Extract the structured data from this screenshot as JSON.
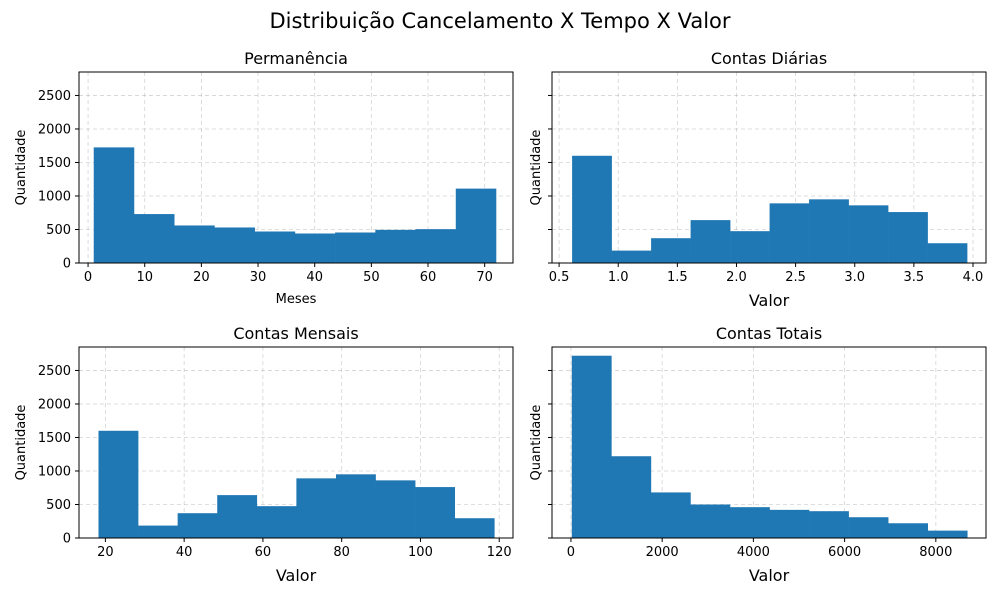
{
  "suptitle": "Distribuição Cancelamento X Tempo X Valor",
  "chart_data": [
    {
      "type": "bar",
      "title": "Permanência",
      "xlabel": "Meses",
      "ylabel": "Quantidade",
      "xlim": [
        -1.6,
        75
      ],
      "ylim": [
        0,
        2850
      ],
      "xticks": [
        0,
        10,
        20,
        30,
        40,
        50,
        60,
        70
      ],
      "xtick_labels": [
        "0",
        "10",
        "20",
        "30",
        "40",
        "50",
        "60",
        "70"
      ],
      "yticks": [
        0,
        500,
        1000,
        1500,
        2000,
        2500
      ],
      "ytick_labels": [
        "0",
        "500",
        "1000",
        "1500",
        "2000",
        "2500"
      ],
      "bin_edges": [
        1,
        8.1,
        15.2,
        22.3,
        29.4,
        36.5,
        43.6,
        50.7,
        57.8,
        64.9,
        72
      ],
      "values": [
        1725,
        730,
        560,
        530,
        470,
        440,
        455,
        495,
        505,
        1110
      ],
      "grid": true
    },
    {
      "type": "bar",
      "title": "Contas Diárias",
      "xlabel": "Valor",
      "ylabel": "Quantidade",
      "xlim": [
        0.44,
        4.11
      ],
      "ylim": [
        0,
        2850
      ],
      "xticks": [
        0.5,
        1.0,
        1.5,
        2.0,
        2.5,
        3.0,
        3.5,
        4.0
      ],
      "xtick_labels": [
        "0.5",
        "1.0",
        "1.5",
        "2.0",
        "2.5",
        "3.0",
        "3.5",
        "4.0"
      ],
      "yticks": [
        0,
        500,
        1000,
        1500,
        2000,
        2500
      ],
      "ytick_labels": [
        "",
        "",
        "",
        "",
        "",
        ""
      ],
      "bin_edges": [
        0.61,
        0.944,
        1.278,
        1.612,
        1.946,
        2.28,
        2.614,
        2.948,
        3.282,
        3.616,
        3.95
      ],
      "values": [
        1600,
        185,
        370,
        640,
        475,
        890,
        950,
        860,
        760,
        295
      ],
      "grid": true
    },
    {
      "type": "bar",
      "title": "Contas Mensais",
      "xlabel": "Valor",
      "ylabel": "Quantidade",
      "xlim": [
        13.3,
        123.5
      ],
      "ylim": [
        0,
        2850
      ],
      "xticks": [
        20,
        40,
        60,
        80,
        100,
        120
      ],
      "xtick_labels": [
        "20",
        "40",
        "60",
        "80",
        "100",
        "120"
      ],
      "yticks": [
        0,
        500,
        1000,
        1500,
        2000,
        2500
      ],
      "ytick_labels": [
        "0",
        "500",
        "1000",
        "1500",
        "2000",
        "2500"
      ],
      "bin_edges": [
        18.25,
        28.3,
        38.35,
        48.4,
        58.45,
        68.5,
        78.55,
        88.6,
        98.65,
        108.7,
        118.75
      ],
      "values": [
        1600,
        185,
        370,
        640,
        475,
        890,
        950,
        860,
        760,
        295
      ],
      "grid": true
    },
    {
      "type": "bar",
      "title": "Contas Totais",
      "xlabel": "Valor",
      "ylabel": "Quantidade",
      "xlim": [
        -415,
        9100
      ],
      "ylim": [
        0,
        2850
      ],
      "xticks": [
        0,
        2000,
        4000,
        6000,
        8000
      ],
      "xtick_labels": [
        "0",
        "2000",
        "4000",
        "6000",
        "8000"
      ],
      "yticks": [
        0,
        500,
        1000,
        1500,
        2000,
        2500
      ],
      "ytick_labels": [
        "",
        "",
        "",
        "",
        "",
        ""
      ],
      "bin_edges": [
        18.8,
        885.8,
        1752.8,
        2619.8,
        3486.8,
        4353.8,
        5220.8,
        6087.8,
        6954.8,
        7821.8,
        8688.8
      ],
      "values": [
        2720,
        1220,
        680,
        500,
        460,
        420,
        400,
        310,
        220,
        110
      ],
      "grid": true
    }
  ],
  "colors": {
    "bar": "#1f77b4",
    "grid": "#b0b0b0"
  }
}
